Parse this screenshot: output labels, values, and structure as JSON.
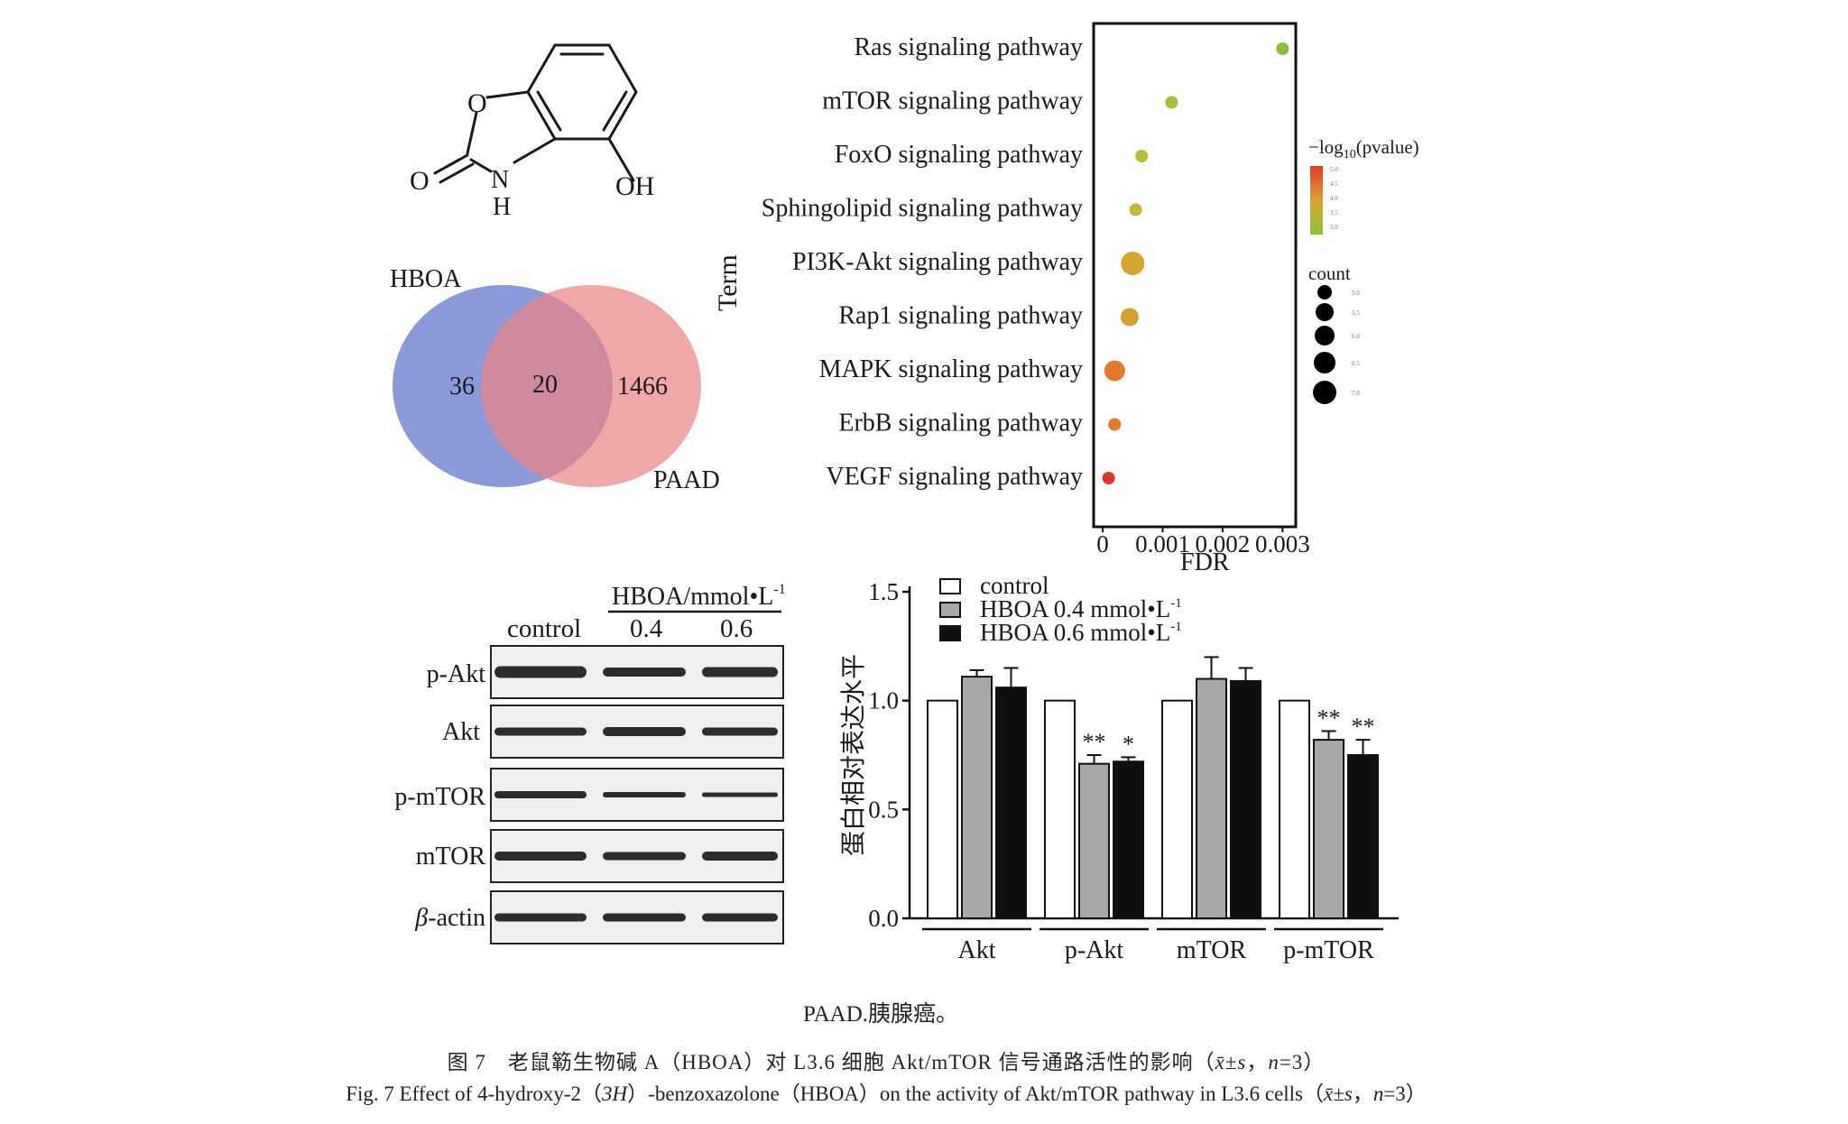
{
  "structure": {
    "label_O_ring": "O",
    "label_O_carbonyl": "O",
    "label_N": "N",
    "label_H": "H",
    "label_OH": "OH"
  },
  "venn": {
    "left_label": "HBOA",
    "right_label": "PAAD",
    "left_only": "36",
    "overlap": "20",
    "right_only": "1466",
    "left_color": "#7d8ed6",
    "right_color": "#ea8585"
  },
  "bubble": {
    "y_axis_label": "Term",
    "x_axis_label": "FDR",
    "x_ticks": [
      "0",
      "0.001",
      "0.002",
      "0.003"
    ],
    "color_legend_title_prefix": "−log",
    "color_legend_title_sub": "10",
    "color_legend_title_suffix": "(pvalue)",
    "size_legend_title": "count",
    "terms": [
      {
        "label": "Ras signaling pathway",
        "fdr": 0.003,
        "count": 5.0,
        "color": "#8bbf3a"
      },
      {
        "label": "mTOR signaling pathway",
        "fdr": 0.00115,
        "count": 5.0,
        "color": "#a3c23a"
      },
      {
        "label": "FoxO signaling pathway",
        "fdr": 0.00065,
        "count": 5.0,
        "color": "#b5be35"
      },
      {
        "label": "Sphingolipid signaling pathway",
        "fdr": 0.00055,
        "count": 5.0,
        "color": "#c8b533"
      },
      {
        "label": "PI3K-Akt signaling pathway",
        "fdr": 0.0005,
        "count": 7.0,
        "color": "#d6a52e"
      },
      {
        "label": "Rap1 signaling pathway",
        "fdr": 0.00045,
        "count": 6.0,
        "color": "#d8a12e"
      },
      {
        "label": "MAPK signaling pathway",
        "fdr": 0.0002,
        "count": 6.5,
        "color": "#e4782a"
      },
      {
        "label": "ErbB signaling pathway",
        "fdr": 0.0002,
        "count": 5.0,
        "color": "#e07a2c"
      },
      {
        "label": "VEGF signaling pathway",
        "fdr": 0.0001,
        "count": 5.0,
        "color": "#e0352a"
      }
    ]
  },
  "western": {
    "group_label": "HBOA/mmol•L",
    "group_label_sup": "-1",
    "lanes": [
      "control",
      "0.4",
      "0.6"
    ],
    "rows": [
      "p-Akt",
      "Akt",
      "p-mTOR",
      "mTOR",
      "actin"
    ],
    "beta_prefix": "β"
  },
  "chart_data": {
    "type": "bar",
    "ylabel": "蛋白相对表达水平",
    "ylim": [
      0,
      1.5
    ],
    "y_ticks": [
      "0.0",
      "0.5",
      "1.0",
      "1.5"
    ],
    "categories": [
      "Akt",
      "p-Akt",
      "mTOR",
      "p-mTOR"
    ],
    "series": [
      {
        "name": "control",
        "values": [
          1.0,
          1.0,
          1.0,
          1.0
        ],
        "errors": [
          0,
          0,
          0,
          0
        ],
        "color": "#ffffff"
      },
      {
        "name": "HBOA 0.4 mmol•L",
        "values": [
          1.11,
          0.71,
          1.1,
          0.82
        ],
        "errors": [
          0.03,
          0.04,
          0.1,
          0.04
        ],
        "color": "#a8a8a8"
      },
      {
        "name": "HBOA 0.6 mmol•L",
        "values": [
          1.06,
          0.72,
          1.09,
          0.75
        ],
        "errors": [
          0.09,
          0.02,
          0.06,
          0.07
        ],
        "color": "#0f0f0f"
      }
    ],
    "legend_sup": "-1",
    "significance": [
      {
        "category": 1,
        "series": 1,
        "mark": "**"
      },
      {
        "category": 1,
        "series": 2,
        "mark": "*"
      },
      {
        "category": 3,
        "series": 1,
        "mark": "**"
      },
      {
        "category": 3,
        "series": 2,
        "mark": "**"
      }
    ]
  },
  "captions": {
    "note": "PAAD.胰腺癌。",
    "cn_prefix": "图 7　老鼠簕生物碱 A（HBOA）对 L3.6 细胞 Akt/mTOR 信号通路活性的影响（",
    "cn_stat": "x̄±s",
    "cn_sep": "，",
    "cn_n": "n",
    "cn_suffix": "=3）",
    "en_prefix": "Fig. 7 Effect of 4-hydroxy-2（",
    "en_3h": "3H",
    "en_middle": "）-benzoxazolone（HBOA）on the activity of Akt/mTOR pathway in L3.6 cells（",
    "en_stat": "x̄±s",
    "en_sep": "，",
    "en_n": "n",
    "en_suffix": "=3）"
  }
}
